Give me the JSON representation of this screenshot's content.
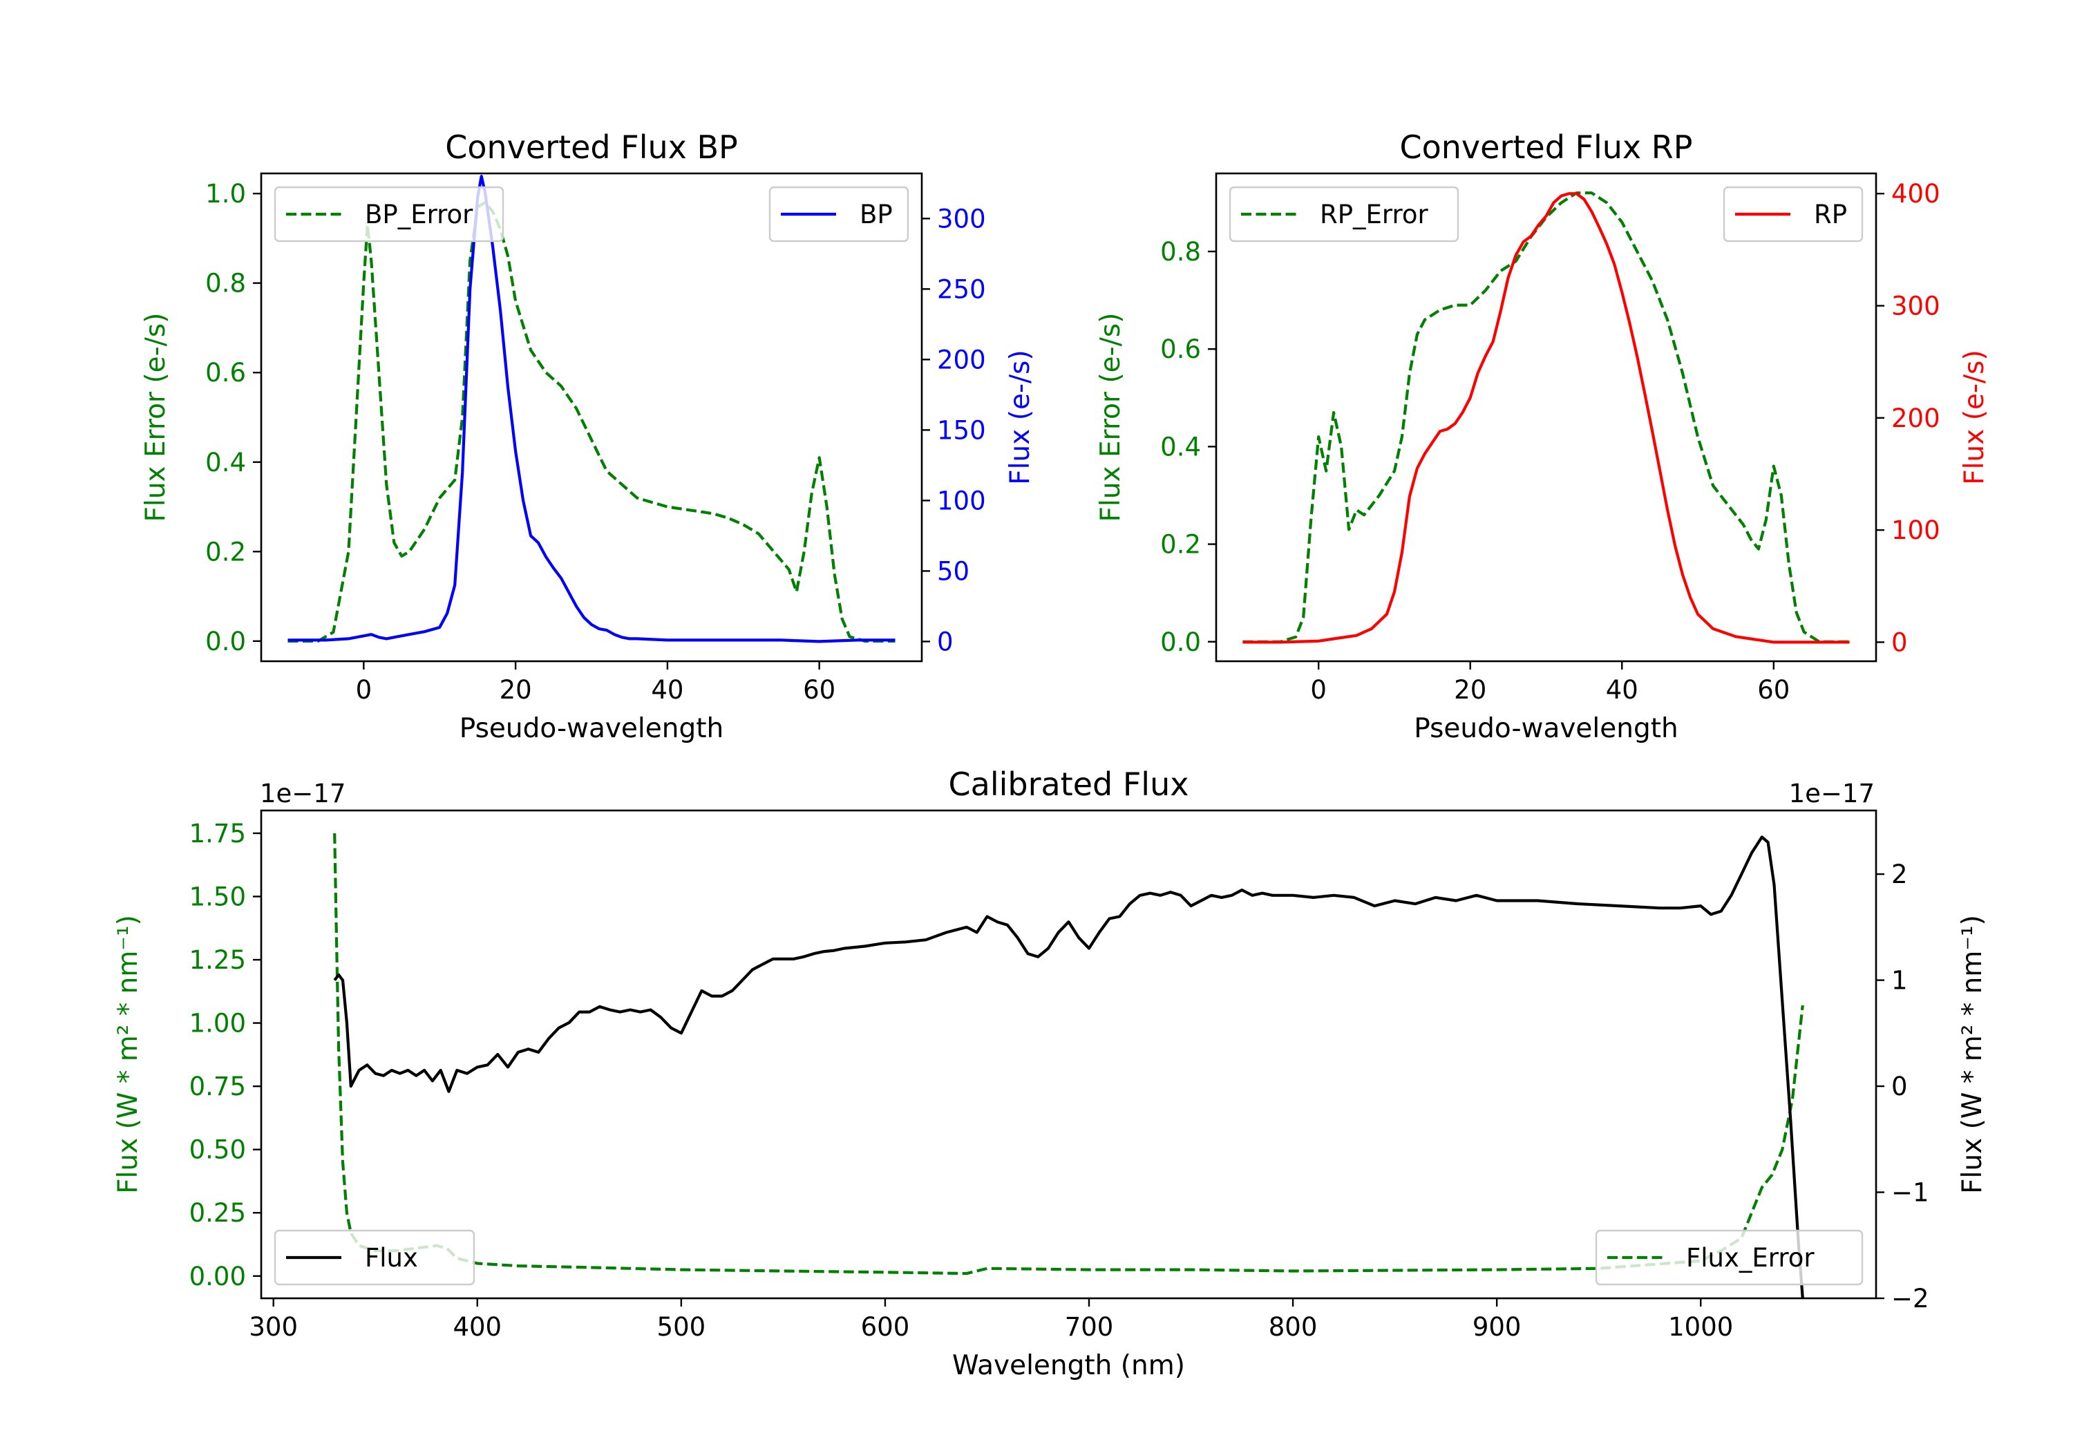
{
  "chart_data": [
    {
      "id": "bp",
      "type": "line",
      "title": "Converted Flux BP",
      "xlabel": "Pseudo-wavelength",
      "xlim": [
        -13.5,
        73.5
      ],
      "xticks": [
        0,
        20,
        40,
        60
      ],
      "xtick_labels": [
        "0",
        "20",
        "40",
        "60"
      ],
      "left_axis": {
        "label": "Flux Error (e-/s)",
        "color": "#008000",
        "lim": [
          -0.045,
          1.045
        ],
        "ticks": [
          0.0,
          0.2,
          0.4,
          0.6,
          0.8,
          1.0
        ],
        "tick_labels": [
          "0.0",
          "0.2",
          "0.4",
          "0.6",
          "0.8",
          "1.0"
        ]
      },
      "right_axis": {
        "label": "Flux (e-/s)",
        "color": "#0000ff",
        "lim": [
          -14,
          332
        ],
        "ticks": [
          0,
          50,
          100,
          150,
          200,
          250,
          300
        ],
        "tick_labels": [
          "0",
          "50",
          "100",
          "150",
          "200",
          "250",
          "300"
        ]
      },
      "legend_left": {
        "label": "BP_Error",
        "position": "upper left"
      },
      "legend_right": {
        "label": "BP",
        "position": "upper right"
      },
      "series": [
        {
          "name": "BP_Error",
          "axis": "left",
          "color": "#008000",
          "style": "dashed",
          "x": [
            -10,
            -6,
            -4,
            -2,
            -1,
            0,
            0.5,
            1,
            2,
            3,
            4,
            5,
            6,
            8,
            10,
            12,
            13,
            14,
            15,
            16,
            17,
            18,
            19,
            20,
            22,
            24,
            26,
            28,
            30,
            32,
            34,
            36,
            38,
            40,
            42,
            44,
            46,
            48,
            50,
            52,
            54,
            56,
            57,
            58,
            59,
            60,
            61,
            62,
            63,
            64,
            66,
            68,
            70
          ],
          "y": [
            0.0,
            0.0,
            0.02,
            0.2,
            0.5,
            0.8,
            0.93,
            0.85,
            0.6,
            0.35,
            0.22,
            0.19,
            0.2,
            0.25,
            0.32,
            0.36,
            0.5,
            0.85,
            0.97,
            0.98,
            0.96,
            0.92,
            0.86,
            0.76,
            0.65,
            0.6,
            0.57,
            0.52,
            0.45,
            0.38,
            0.35,
            0.32,
            0.31,
            0.3,
            0.295,
            0.29,
            0.285,
            0.275,
            0.26,
            0.24,
            0.2,
            0.16,
            0.11,
            0.2,
            0.33,
            0.41,
            0.3,
            0.15,
            0.05,
            0.01,
            0.0,
            0.0,
            0.0
          ]
        },
        {
          "name": "BP",
          "axis": "right",
          "color": "#0000ff",
          "style": "solid",
          "x": [
            -10,
            -5,
            -2,
            0,
            1,
            2,
            3,
            4,
            6,
            8,
            10,
            11,
            12,
            13,
            14,
            15,
            15.5,
            16,
            17,
            18,
            19,
            20,
            21,
            22,
            23,
            24,
            25,
            26,
            27,
            28,
            29,
            30,
            31,
            32,
            33,
            34,
            35,
            36,
            38,
            40,
            45,
            50,
            55,
            60,
            65,
            70
          ],
          "y": [
            1,
            1,
            2,
            4,
            5,
            3,
            2,
            3,
            5,
            7,
            10,
            20,
            40,
            120,
            250,
            315,
            330,
            318,
            280,
            235,
            180,
            135,
            100,
            75,
            70,
            60,
            52,
            45,
            35,
            25,
            17,
            12,
            9,
            8,
            5,
            3,
            2,
            2,
            1.5,
            1,
            1,
            1,
            1,
            0,
            1,
            1
          ]
        }
      ]
    },
    {
      "id": "rp",
      "type": "line",
      "title": "Converted Flux RP",
      "xlabel": "Pseudo-wavelength",
      "xlim": [
        -13.5,
        73.5
      ],
      "xticks": [
        0,
        20,
        40,
        60
      ],
      "xtick_labels": [
        "0",
        "20",
        "40",
        "60"
      ],
      "left_axis": {
        "label": "Flux Error (e-/s)",
        "color": "#008000",
        "lim": [
          -0.04,
          0.96
        ],
        "ticks": [
          0.0,
          0.2,
          0.4,
          0.6,
          0.8
        ],
        "tick_labels": [
          "0.0",
          "0.2",
          "0.4",
          "0.6",
          "0.8"
        ]
      },
      "right_axis": {
        "label": "Flux (e-/s)",
        "color": "#ff0000",
        "lim": [
          -17,
          418
        ],
        "ticks": [
          0,
          100,
          200,
          300,
          400
        ],
        "tick_labels": [
          "0",
          "100",
          "200",
          "300",
          "400"
        ]
      },
      "legend_left": {
        "label": "RP_Error",
        "position": "upper left"
      },
      "legend_right": {
        "label": "RP",
        "position": "upper right"
      },
      "series": [
        {
          "name": "RP_Error",
          "axis": "left",
          "color": "#008000",
          "style": "dashed",
          "x": [
            -10,
            -5,
            -3,
            -2,
            -1,
            0,
            1,
            2,
            3,
            4,
            5,
            6,
            8,
            10,
            11,
            12,
            13,
            14,
            16,
            18,
            20,
            22,
            24,
            26,
            28,
            30,
            32,
            34,
            36,
            38,
            40,
            42,
            44,
            46,
            48,
            50,
            52,
            54,
            56,
            57,
            58,
            59,
            60,
            61,
            62,
            63,
            64,
            66,
            70
          ],
          "y": [
            0.0,
            0.0,
            0.01,
            0.05,
            0.25,
            0.42,
            0.35,
            0.47,
            0.4,
            0.23,
            0.27,
            0.26,
            0.3,
            0.35,
            0.42,
            0.55,
            0.63,
            0.66,
            0.68,
            0.69,
            0.69,
            0.72,
            0.76,
            0.78,
            0.83,
            0.87,
            0.9,
            0.92,
            0.92,
            0.9,
            0.86,
            0.8,
            0.74,
            0.66,
            0.55,
            0.42,
            0.32,
            0.28,
            0.24,
            0.21,
            0.19,
            0.25,
            0.36,
            0.3,
            0.16,
            0.06,
            0.02,
            0.0,
            0.0
          ]
        },
        {
          "name": "RP",
          "axis": "right",
          "color": "#ff0000",
          "style": "solid",
          "x": [
            -10,
            -5,
            0,
            2,
            5,
            7,
            9,
            10,
            11,
            12,
            13,
            14,
            15,
            16,
            17,
            18,
            19,
            20,
            21,
            22,
            23,
            24,
            25,
            26,
            27,
            28,
            29,
            30,
            31,
            32,
            33,
            34,
            35,
            36,
            37,
            38,
            39,
            40,
            41,
            42,
            43,
            44,
            45,
            46,
            47,
            48,
            49,
            50,
            52,
            55,
            58,
            60,
            62,
            65,
            70
          ],
          "y": [
            0,
            0,
            1,
            3,
            6,
            12,
            25,
            45,
            80,
            130,
            155,
            168,
            178,
            188,
            190,
            195,
            205,
            218,
            240,
            255,
            268,
            295,
            325,
            345,
            357,
            362,
            372,
            380,
            392,
            398,
            400,
            400,
            395,
            384,
            370,
            355,
            337,
            312,
            285,
            255,
            222,
            188,
            153,
            118,
            86,
            60,
            40,
            25,
            12,
            5,
            2,
            0,
            0,
            0,
            0
          ]
        }
      ]
    },
    {
      "id": "calibrated",
      "type": "line",
      "title": "Calibrated Flux",
      "xlabel": "Wavelength (nm)",
      "xlim": [
        294,
        1086
      ],
      "xticks": [
        300,
        400,
        500,
        600,
        700,
        800,
        900,
        1000
      ],
      "xtick_labels": [
        "300",
        "400",
        "500",
        "600",
        "700",
        "800",
        "900",
        "1000"
      ],
      "left_axis": {
        "label": "Flux (W * m² * nm⁻¹)",
        "color": "#008000",
        "offset": "1e−17",
        "lim": [
          -0.088,
          1.84
        ],
        "ticks": [
          0.0,
          0.25,
          0.5,
          0.75,
          1.0,
          1.25,
          1.5,
          1.75
        ],
        "tick_labels": [
          "0.00",
          "0.25",
          "0.50",
          "0.75",
          "1.00",
          "1.25",
          "1.50",
          "1.75"
        ]
      },
      "right_axis": {
        "label": "Flux (W * m² * nm⁻¹)",
        "color": "#000000",
        "offset": "1e−17",
        "lim": [
          -2.0,
          2.6
        ],
        "ticks": [
          -2,
          -1,
          0,
          1,
          2
        ],
        "tick_labels": [
          "−2",
          "−1",
          "0",
          "1",
          "2"
        ]
      },
      "legend_left": {
        "label": "Flux",
        "position": "lower left"
      },
      "legend_right": {
        "label": "Flux_Error",
        "position": "lower right"
      },
      "series": [
        {
          "name": "Flux_Error",
          "axis": "left",
          "color": "#008000",
          "style": "dashed",
          "x": [
            330,
            331,
            332,
            334,
            336,
            338,
            342,
            350,
            360,
            370,
            380,
            385,
            390,
            400,
            420,
            450,
            500,
            550,
            600,
            640,
            650,
            700,
            750,
            800,
            900,
            950,
            1000,
            1010,
            1020,
            1025,
            1030,
            1035,
            1040,
            1045,
            1050
          ],
          "y": [
            1.75,
            1.3,
            0.9,
            0.45,
            0.25,
            0.17,
            0.12,
            0.1,
            0.1,
            0.11,
            0.12,
            0.11,
            0.07,
            0.05,
            0.04,
            0.035,
            0.025,
            0.02,
            0.015,
            0.01,
            0.03,
            0.025,
            0.025,
            0.02,
            0.025,
            0.03,
            0.06,
            0.1,
            0.15,
            0.25,
            0.35,
            0.4,
            0.5,
            0.7,
            1.07
          ]
        },
        {
          "name": "Flux",
          "axis": "right",
          "color": "#000000",
          "style": "solid",
          "x": [
            330,
            332,
            334,
            336,
            338,
            342,
            346,
            350,
            354,
            358,
            362,
            366,
            370,
            374,
            378,
            382,
            386,
            390,
            395,
            400,
            405,
            410,
            415,
            420,
            425,
            430,
            435,
            440,
            445,
            450,
            455,
            460,
            465,
            470,
            475,
            480,
            485,
            490,
            495,
            500,
            505,
            510,
            515,
            520,
            525,
            530,
            535,
            540,
            545,
            550,
            555,
            560,
            565,
            570,
            575,
            580,
            590,
            600,
            610,
            620,
            630,
            640,
            645,
            650,
            655,
            660,
            665,
            670,
            675,
            680,
            685,
            690,
            695,
            700,
            705,
            710,
            715,
            720,
            725,
            730,
            735,
            740,
            745,
            750,
            755,
            760,
            765,
            770,
            775,
            780,
            785,
            790,
            800,
            810,
            820,
            830,
            840,
            850,
            860,
            870,
            880,
            890,
            900,
            920,
            940,
            960,
            980,
            990,
            1000,
            1005,
            1010,
            1015,
            1020,
            1025,
            1030,
            1033,
            1036,
            1040,
            1044,
            1048,
            1050
          ],
          "y": [
            1.0,
            1.05,
            1.0,
            0.6,
            0.0,
            0.15,
            0.2,
            0.12,
            0.1,
            0.15,
            0.12,
            0.15,
            0.1,
            0.15,
            0.05,
            0.15,
            -0.05,
            0.15,
            0.12,
            0.18,
            0.2,
            0.3,
            0.18,
            0.32,
            0.35,
            0.32,
            0.45,
            0.55,
            0.6,
            0.7,
            0.7,
            0.75,
            0.72,
            0.7,
            0.72,
            0.7,
            0.72,
            0.65,
            0.55,
            0.5,
            0.7,
            0.9,
            0.85,
            0.85,
            0.9,
            1.0,
            1.1,
            1.15,
            1.2,
            1.2,
            1.2,
            1.22,
            1.25,
            1.27,
            1.28,
            1.3,
            1.32,
            1.35,
            1.36,
            1.38,
            1.45,
            1.5,
            1.45,
            1.6,
            1.55,
            1.52,
            1.4,
            1.25,
            1.22,
            1.3,
            1.45,
            1.55,
            1.4,
            1.3,
            1.45,
            1.58,
            1.6,
            1.72,
            1.8,
            1.82,
            1.8,
            1.83,
            1.8,
            1.7,
            1.75,
            1.8,
            1.78,
            1.8,
            1.85,
            1.8,
            1.82,
            1.8,
            1.8,
            1.78,
            1.8,
            1.78,
            1.7,
            1.75,
            1.72,
            1.78,
            1.75,
            1.8,
            1.75,
            1.75,
            1.72,
            1.7,
            1.68,
            1.68,
            1.7,
            1.62,
            1.65,
            1.8,
            2.0,
            2.2,
            2.35,
            2.3,
            1.9,
            0.8,
            -0.3,
            -1.5,
            -2.0
          ]
        }
      ]
    }
  ]
}
